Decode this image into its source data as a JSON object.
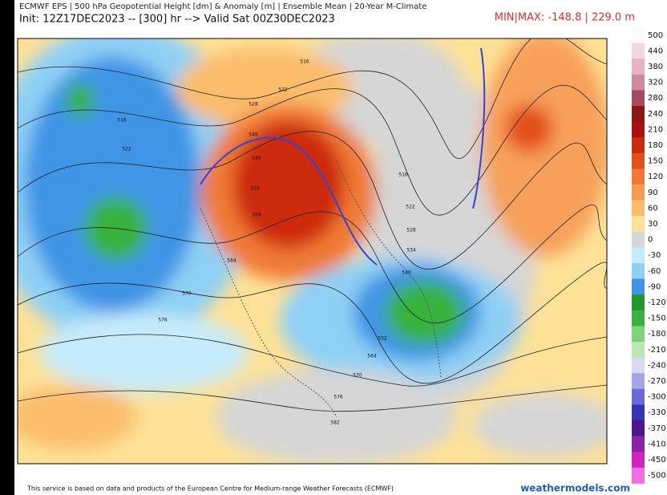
{
  "header": {
    "line1": "ECMWF EPS | 500 hPa Geopotential Height [dm] & Anomaly [m] | Ensemble Mean | 20-Year M-Climate",
    "line2": "Init: 12Z17DEC2023 -- [300] hr --> Valid Sat 00Z30DEC2023",
    "minmax": "MIN|MAX: -148.8 | 229.0 m"
  },
  "colorbar": {
    "levels": [
      {
        "value": 500,
        "color": "#fbfbfb"
      },
      {
        "value": 440,
        "color": "#f3d6df"
      },
      {
        "value": 380,
        "color": "#e6b3c4"
      },
      {
        "value": 320,
        "color": "#cf8aa2"
      },
      {
        "value": 280,
        "color": "#a54b5e"
      },
      {
        "value": 240,
        "color": "#8c1616"
      },
      {
        "value": 210,
        "color": "#a8120e"
      },
      {
        "value": 180,
        "color": "#cc2a0e"
      },
      {
        "value": 150,
        "color": "#e4501a"
      },
      {
        "value": 120,
        "color": "#f07a34"
      },
      {
        "value": 90,
        "color": "#f79c4e"
      },
      {
        "value": 60,
        "color": "#fbbd6c"
      },
      {
        "value": 30,
        "color": "#fde196"
      },
      {
        "value": 0,
        "color": "#d6d6d6"
      },
      {
        "value": -30,
        "color": "#c6ebfa"
      },
      {
        "value": -60,
        "color": "#8fd0f5"
      },
      {
        "value": -90,
        "color": "#3f94e6"
      },
      {
        "value": -120,
        "color": "#1f9a2a"
      },
      {
        "value": -150,
        "color": "#39b23e"
      },
      {
        "value": -180,
        "color": "#7cd37a"
      },
      {
        "value": -210,
        "color": "#b7e9b0"
      },
      {
        "value": -240,
        "color": "#d9d9f4"
      },
      {
        "value": -270,
        "color": "#a4a4e6"
      },
      {
        "value": -300,
        "color": "#6a6ad6"
      },
      {
        "value": -330,
        "color": "#3535b2"
      },
      {
        "value": -370,
        "color": "#4d1590"
      },
      {
        "value": -410,
        "color": "#8e22a2"
      },
      {
        "value": -450,
        "color": "#cf24c2"
      },
      {
        "value": -500,
        "color": "#f26ee2"
      }
    ]
  },
  "map": {
    "contour_labels": [
      "516",
      "522",
      "528",
      "540",
      "546",
      "552",
      "558",
      "564",
      "570",
      "576",
      "516",
      "522",
      "516",
      "522",
      "528",
      "534",
      "540",
      "552",
      "564",
      "570",
      "576",
      "582"
    ]
  },
  "footer": {
    "notice": "This service is based on data and products of the European Centre for Medium-range Weather Forecasts (ECMWF)",
    "site": "weathermodels.com"
  }
}
